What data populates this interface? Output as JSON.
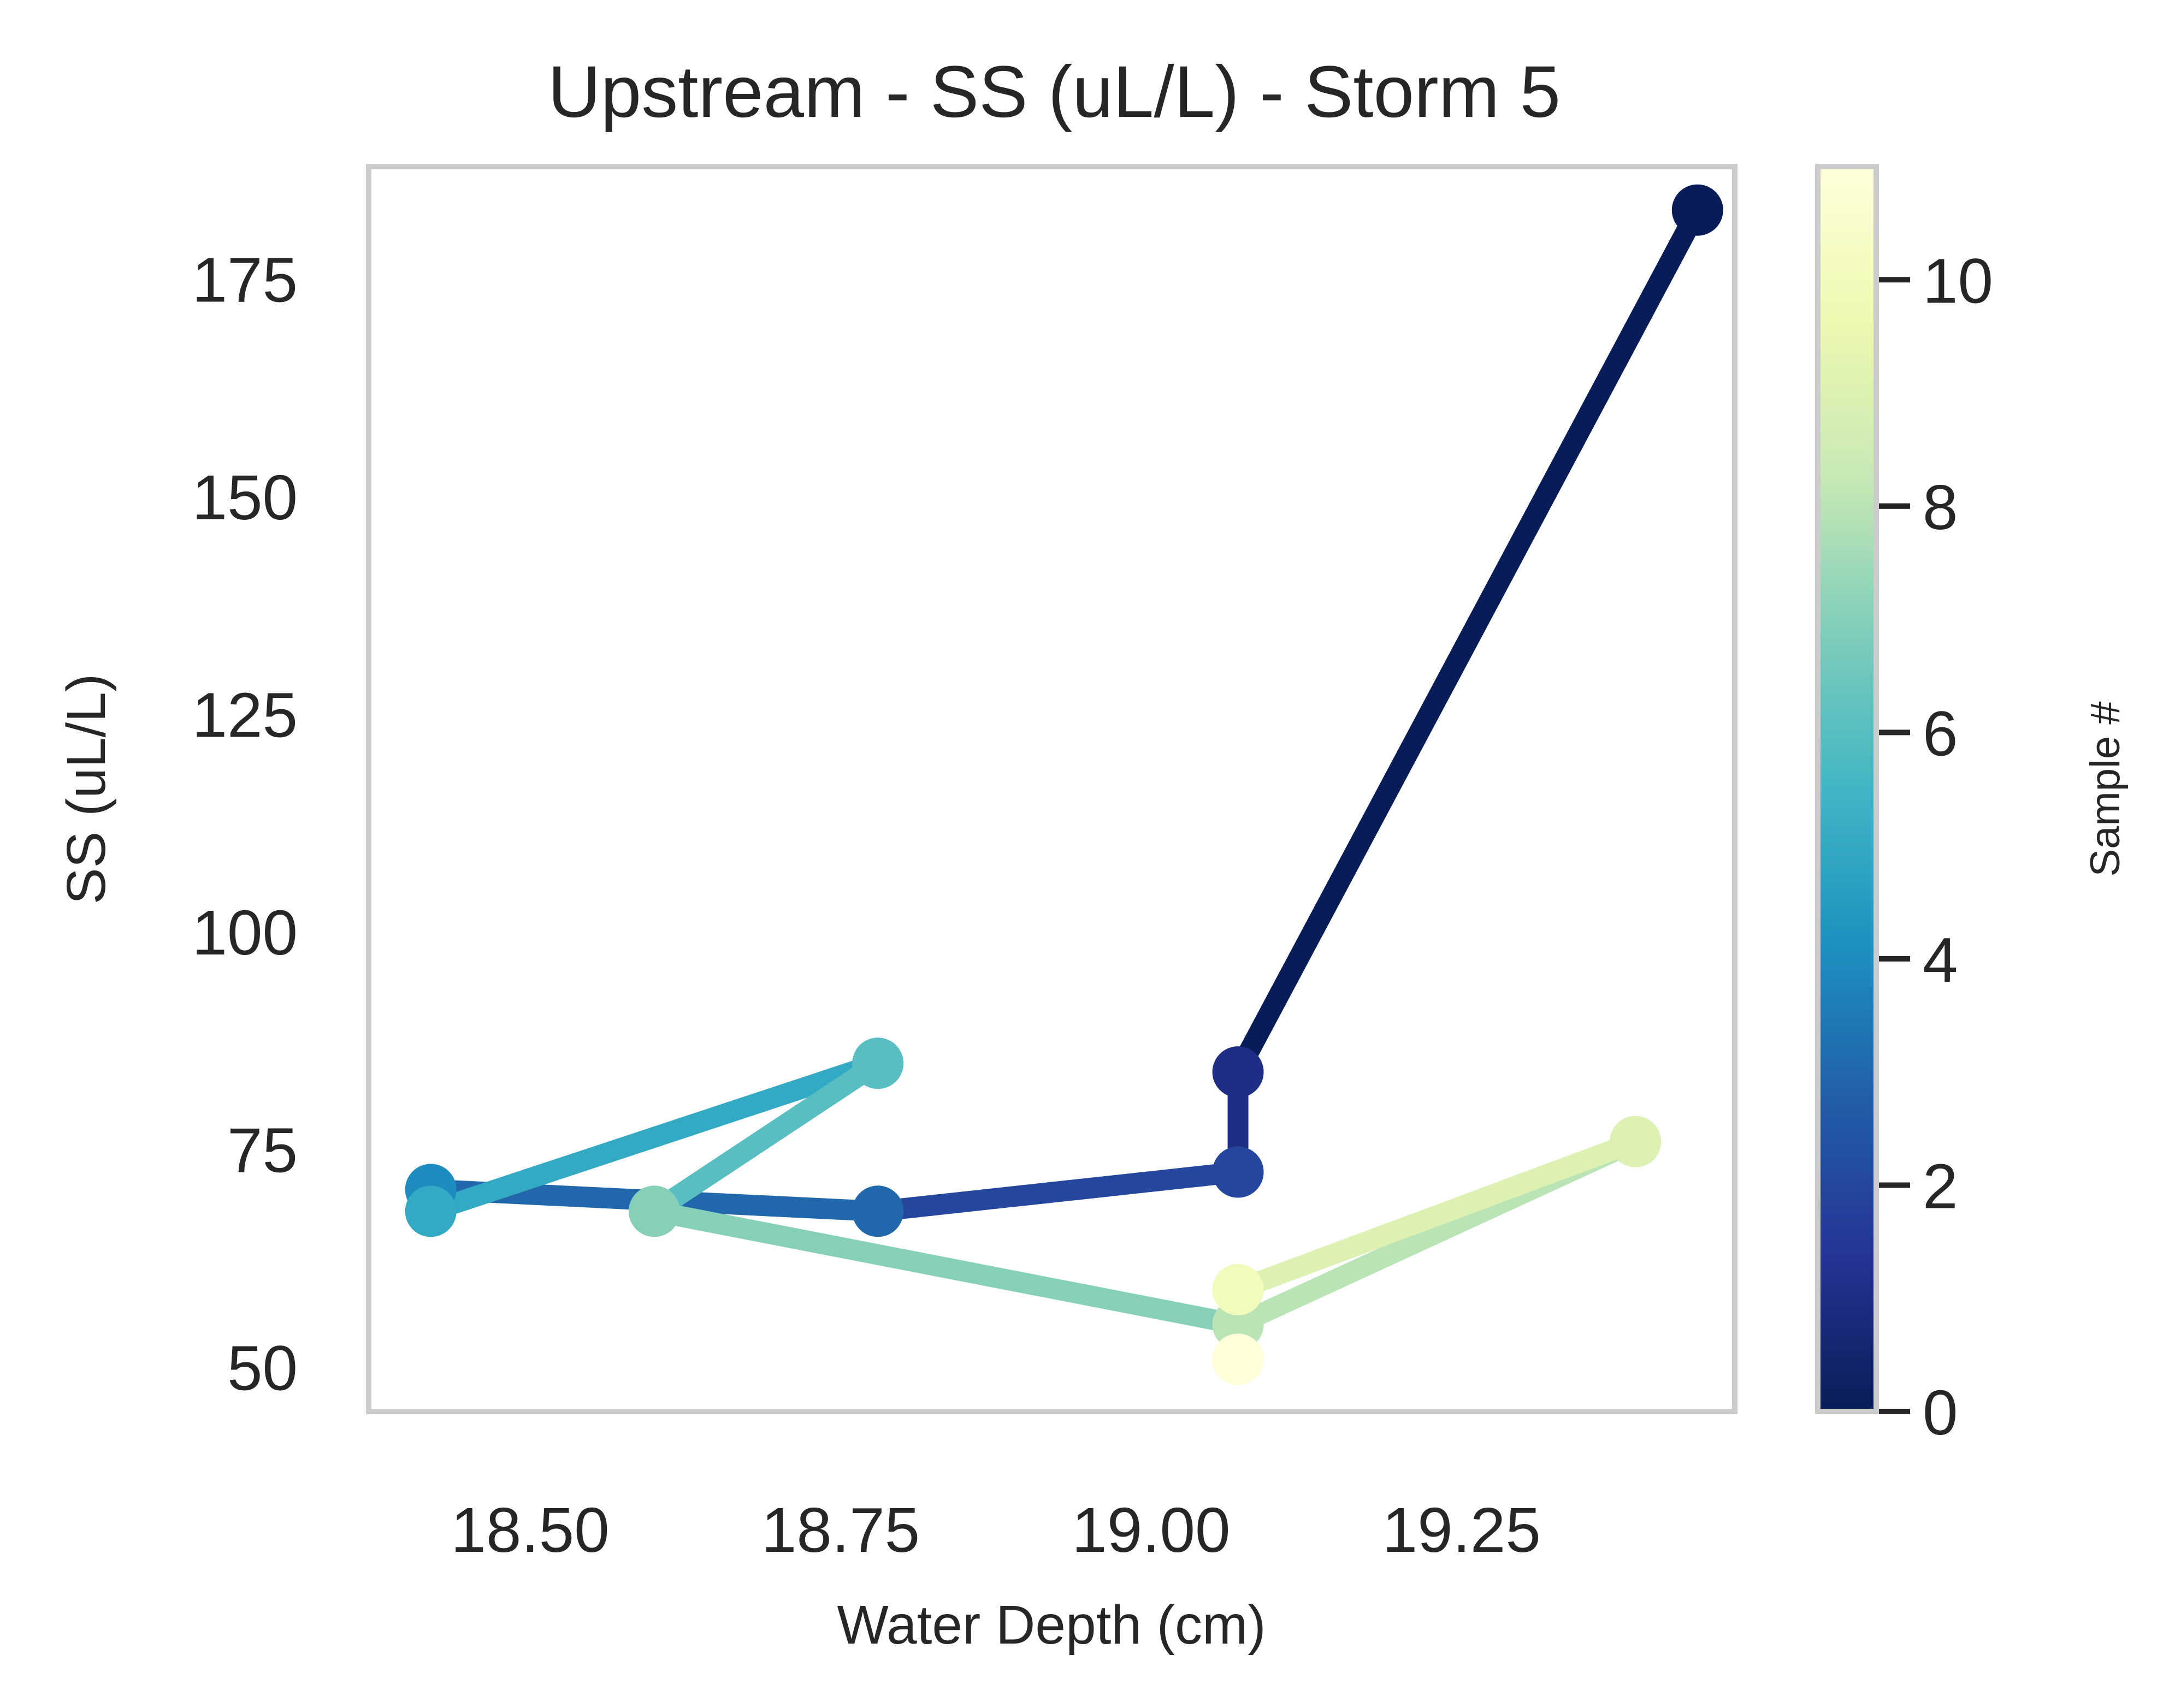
{
  "chart_data": {
    "type": "line",
    "title": "Upstream - SS (uL/L) - Storm 5",
    "xlabel": "Water Depth (cm)",
    "ylabel": "SS (uL/L)",
    "xlim": [
      18.37,
      19.47
    ],
    "ylim": [
      45,
      188
    ],
    "xticks": [
      18.5,
      18.75,
      19.0,
      19.25
    ],
    "xtick_labels": [
      "18.50",
      "18.75",
      "19.00",
      "19.25"
    ],
    "yticks": [
      50,
      75,
      100,
      125,
      150,
      175
    ],
    "ytick_labels": [
      "50",
      "75",
      "100",
      "125",
      "150",
      "175"
    ],
    "grid": false,
    "series": [
      {
        "sample": [
          0,
          1,
          2,
          3,
          4,
          5,
          6,
          7,
          8,
          9,
          10,
          11
        ],
        "x": [
          19.44,
          19.07,
          19.07,
          18.78,
          18.42,
          18.42,
          18.78,
          18.6,
          19.07,
          19.39,
          19.07,
          19.07
        ],
        "y": [
          183,
          84,
          72.5,
          68,
          70.5,
          68,
          85,
          68,
          55,
          76,
          59,
          51
        ]
      }
    ],
    "colorbar": {
      "label": "Sample #",
      "colormap": "YlGnBu_r",
      "range": [
        0,
        11
      ],
      "ticks": [
        0,
        2,
        4,
        6,
        8,
        10
      ],
      "tick_labels": [
        "0",
        "2",
        "4",
        "6",
        "8",
        "10"
      ]
    },
    "colors": {
      "frame": "#cccccc",
      "text": "#262626"
    }
  }
}
